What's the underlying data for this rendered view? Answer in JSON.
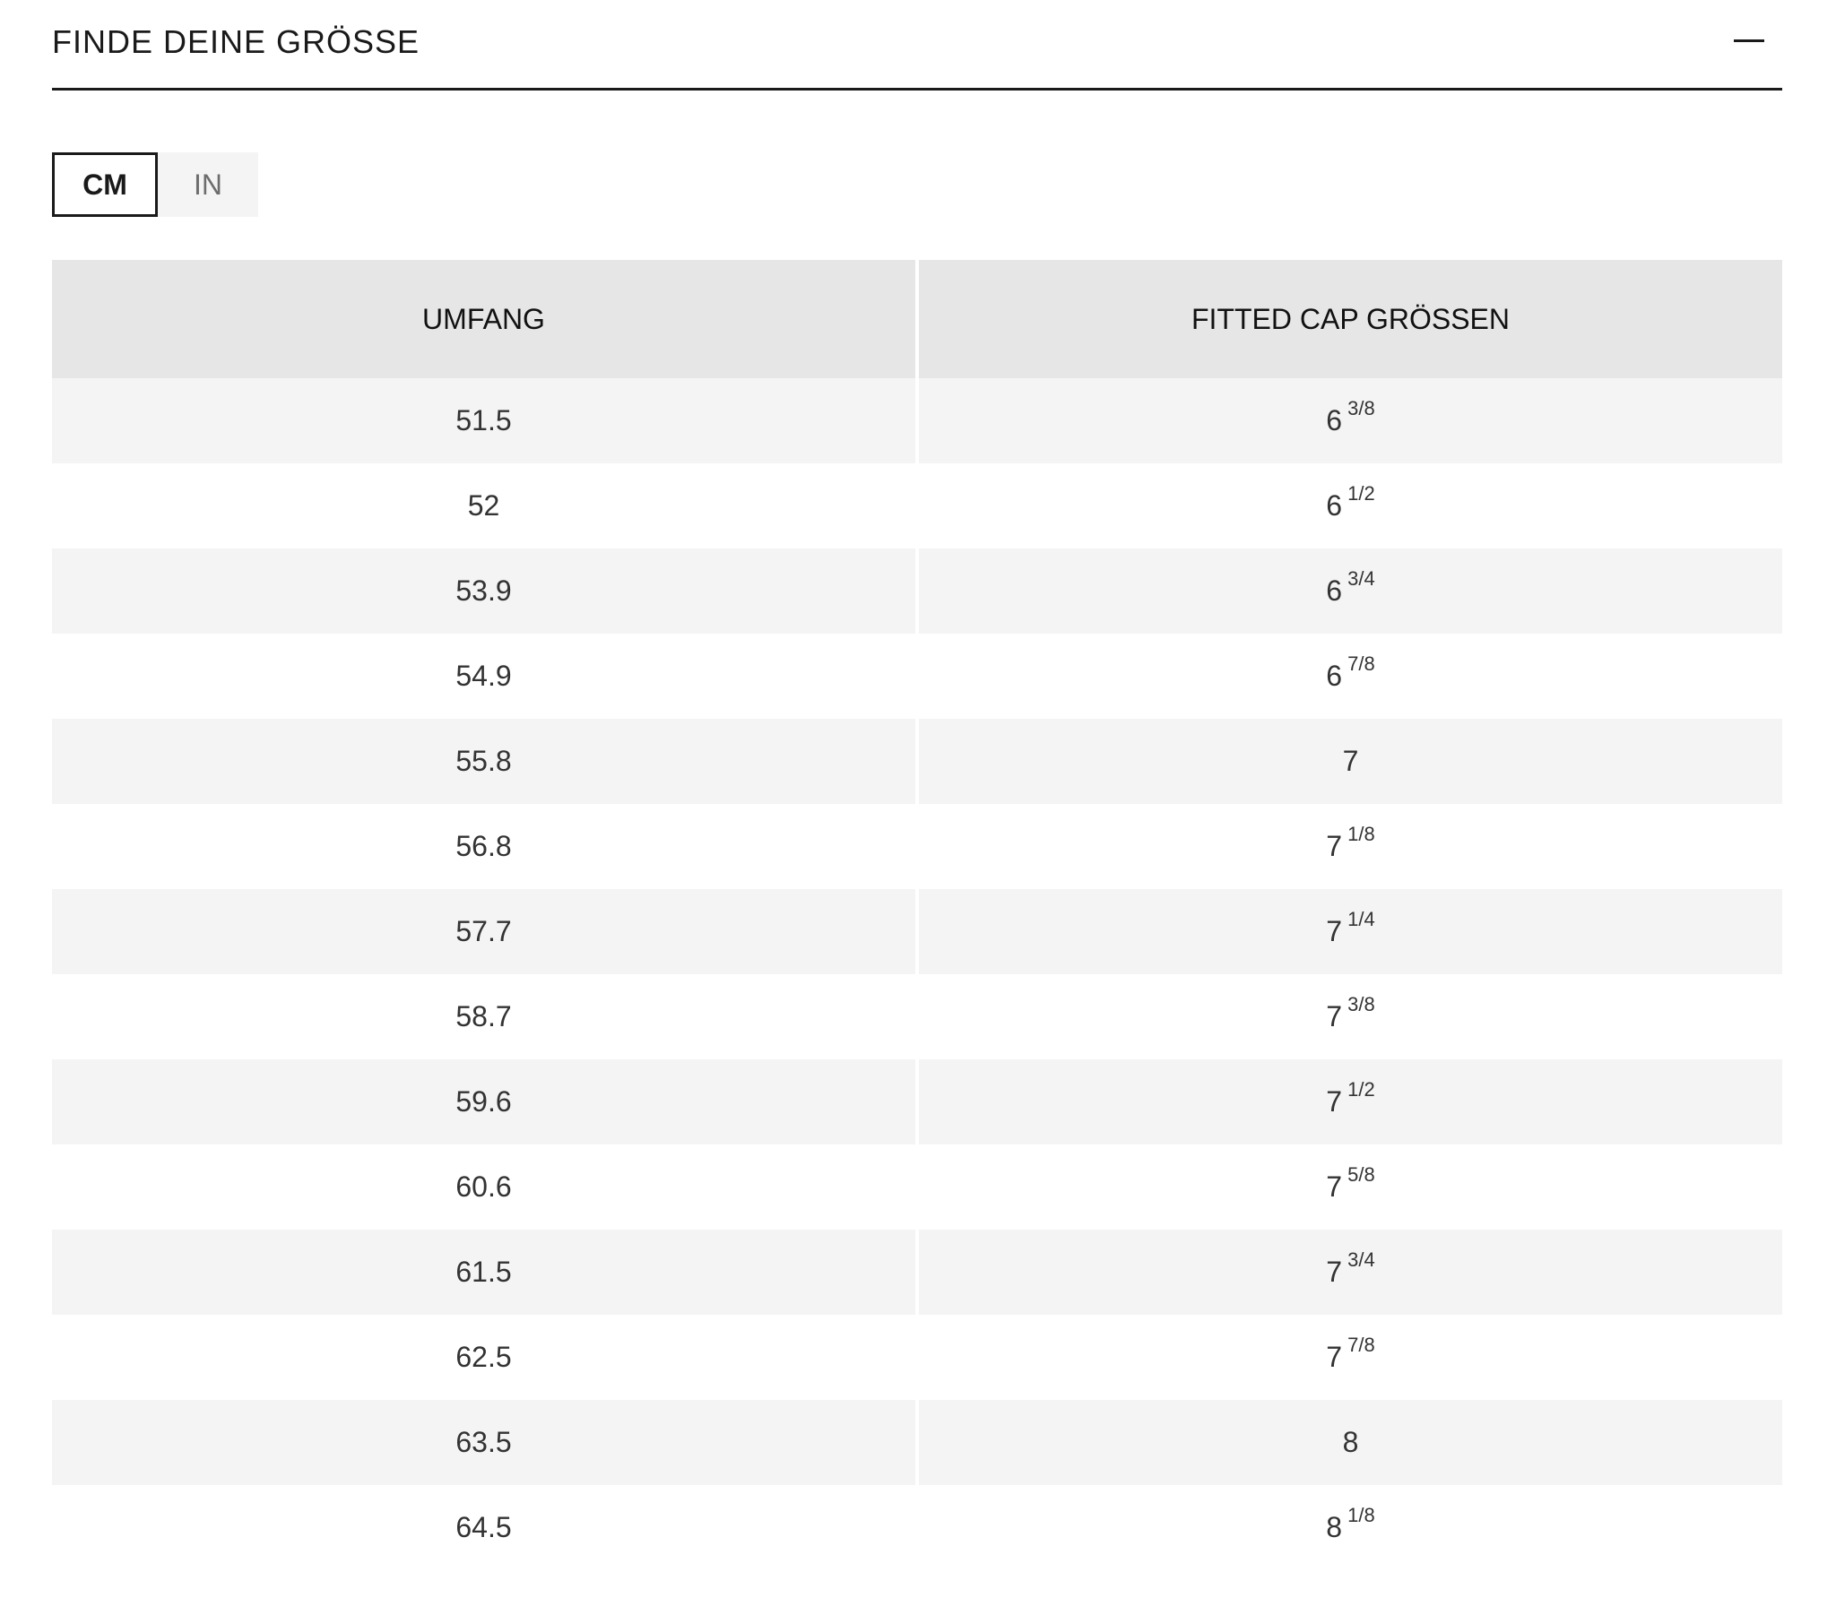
{
  "header": {
    "title": "FINDE DEINE GRÖSSE"
  },
  "unit_toggle": {
    "options": [
      {
        "label": "CM",
        "active": true
      },
      {
        "label": "IN",
        "active": false
      }
    ]
  },
  "table": {
    "headers": [
      "UMFANG",
      "FITTED CAP GRÖSSEN"
    ],
    "rows": [
      {
        "umfang": "51.5",
        "size": "6",
        "fraction": "3/8"
      },
      {
        "umfang": "52",
        "size": "6",
        "fraction": "1/2"
      },
      {
        "umfang": "53.9",
        "size": "6",
        "fraction": "3/4"
      },
      {
        "umfang": "54.9",
        "size": "6",
        "fraction": "7/8"
      },
      {
        "umfang": "55.8",
        "size": "7",
        "fraction": ""
      },
      {
        "umfang": "56.8",
        "size": "7",
        "fraction": "1/8"
      },
      {
        "umfang": "57.7",
        "size": "7",
        "fraction": "1/4"
      },
      {
        "umfang": "58.7",
        "size": "7",
        "fraction": "3/8"
      },
      {
        "umfang": "59.6",
        "size": "7",
        "fraction": "1/2"
      },
      {
        "umfang": "60.6",
        "size": "7",
        "fraction": "5/8"
      },
      {
        "umfang": "61.5",
        "size": "7",
        "fraction": "3/4"
      },
      {
        "umfang": "62.5",
        "size": "7",
        "fraction": "7/8"
      },
      {
        "umfang": "63.5",
        "size": "8",
        "fraction": ""
      },
      {
        "umfang": "64.5",
        "size": "8",
        "fraction": "1/8"
      }
    ]
  },
  "colors": {
    "text": "#1a1a1a",
    "header_bg": "#e6e6e6",
    "row_shade": "#f4f4f4",
    "inactive_toggle_bg": "#f4f4f4"
  }
}
